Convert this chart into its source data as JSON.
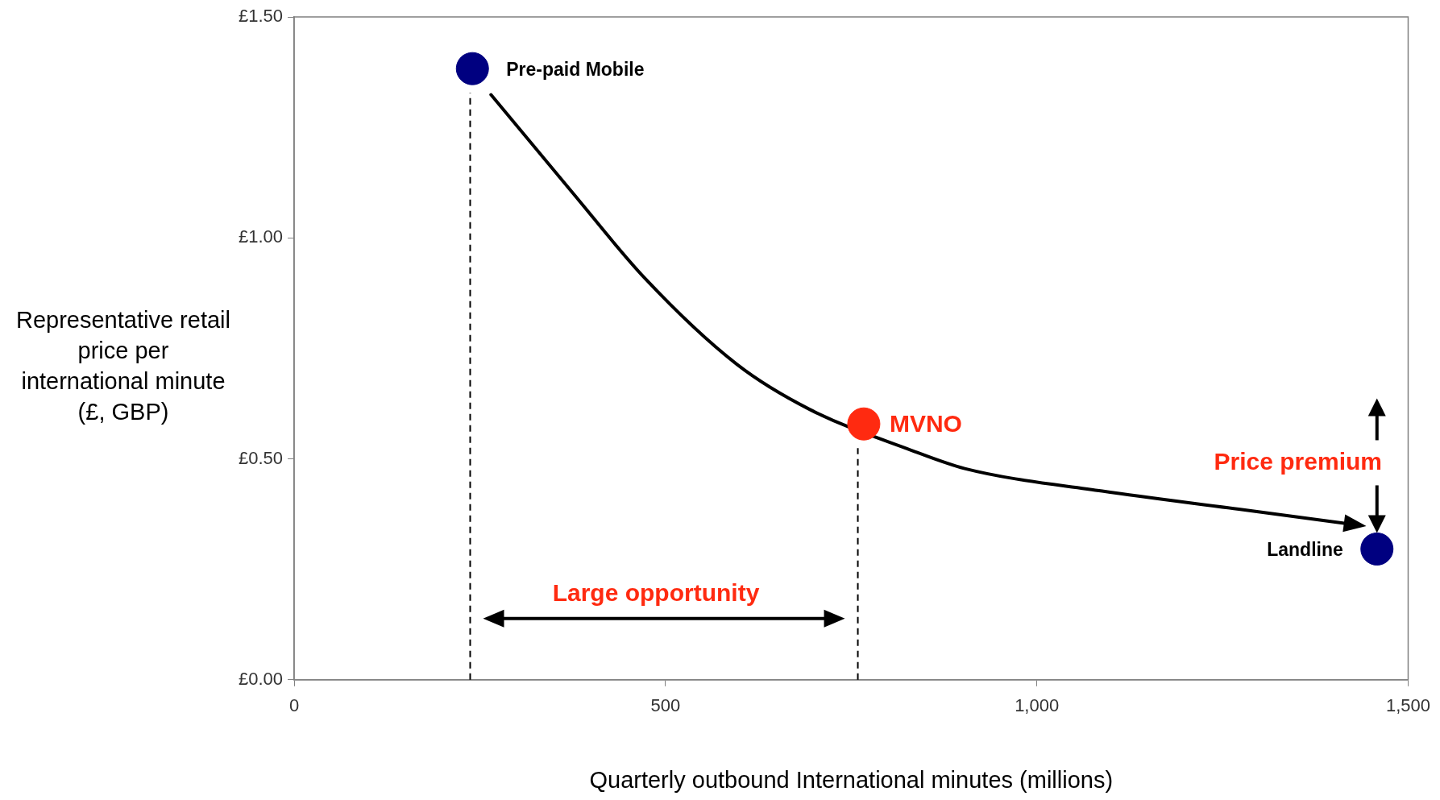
{
  "chart_data": {
    "type": "scatter",
    "xlabel": "Quarterly outbound International minutes (millions)",
    "ylabel": "Representative retail price per international minute (£, GBP)",
    "xlim": [
      0,
      1500
    ],
    "xticks": [
      0,
      500,
      {
        "value": 1000,
        "label": "1,000"
      },
      {
        "value": 1500,
        "label": "1,500"
      }
    ],
    "ylim": [
      0,
      1.5
    ],
    "yticks": [
      {
        "value": 0,
        "label": "£0.00"
      },
      {
        "value": 0.5,
        "label": "£0.50"
      },
      {
        "value": 1,
        "label": "£1.00"
      },
      {
        "value": 1.5,
        "label": "£1.50"
      }
    ],
    "grid": false,
    "legend": false,
    "series": [
      {
        "type": "line",
        "color": "#000000",
        "marker": "none",
        "x": [
          265,
          374,
          472,
          596,
          694,
          830,
          903,
          1088,
          1272,
          1420
        ],
        "values": [
          1.324,
          1.104,
          0.909,
          0.714,
          0.612,
          0.52,
          0.478,
          0.427,
          0.386,
          0.353
        ]
      },
      {
        "type": "scatter",
        "name": "Pre-paid Mobile",
        "color": "#000080",
        "marker": "circle",
        "x": [
          240
        ],
        "values": [
          1.383
        ]
      },
      {
        "type": "scatter",
        "name": "MVNO",
        "color": "#ff2a10",
        "marker": "circle",
        "x": [
          767
        ],
        "values": [
          0.579
        ]
      },
      {
        "type": "scatter",
        "name": "Landline",
        "color": "#000080",
        "marker": "circle",
        "x": [
          1458
        ],
        "values": [
          0.296
        ]
      }
    ],
    "ref_lines": [
      {
        "axis": "x",
        "value": 237,
        "line_style": "dashed",
        "color": "#000000"
      },
      {
        "axis": "x",
        "value": 759,
        "line_style": "dashed",
        "color": "#000000"
      }
    ],
    "annotations": [
      "Large opportunity",
      "Price premium"
    ]
  }
}
